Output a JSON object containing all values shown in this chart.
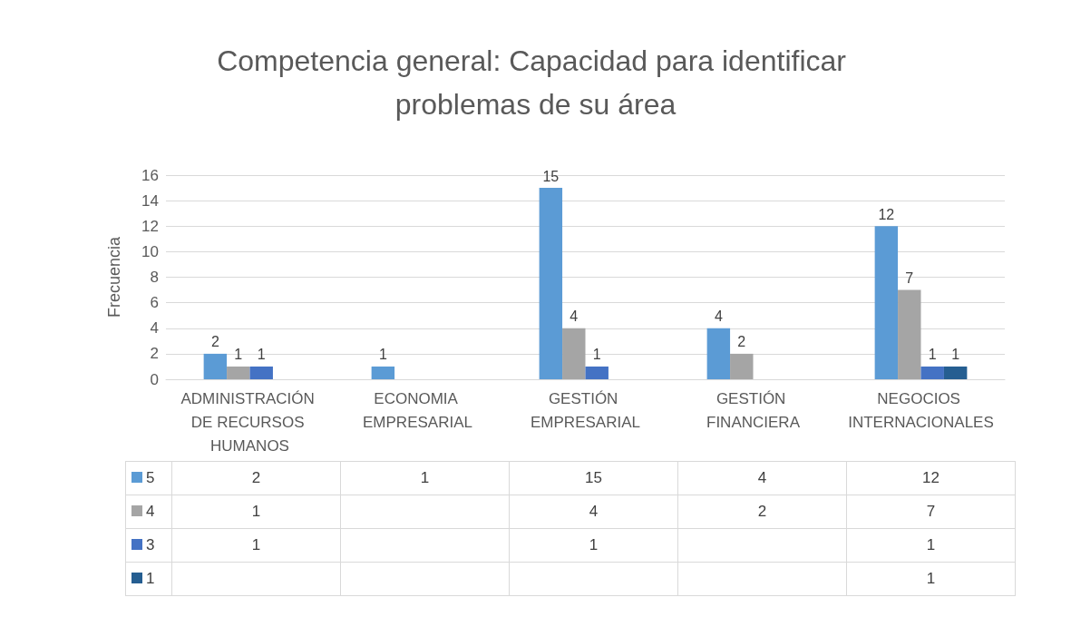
{
  "chart_data": {
    "type": "bar",
    "title": "Competencia general: Capacidad para identificar problemas de su área",
    "ylabel": "Frecuencia",
    "categories": [
      "ADMINISTRACIÓN DE RECURSOS HUMANOS",
      "ECONOMIA EMPRESARIAL",
      "GESTIÓN EMPRESARIAL",
      "GESTIÓN FINANCIERA",
      "NEGOCIOS INTERNACIONALES"
    ],
    "series": [
      {
        "name": "5",
        "color": "#5b9bd5",
        "values": [
          2,
          1,
          15,
          4,
          12
        ],
        "value_labels": [
          "2",
          "1",
          "15",
          "4",
          "12"
        ]
      },
      {
        "name": "4",
        "color": "#a5a5a5",
        "values": [
          1,
          null,
          4,
          2,
          7
        ],
        "value_labels": [
          "1",
          null,
          "4",
          "2",
          "7"
        ]
      },
      {
        "name": "3",
        "color": "#4472c4",
        "values": [
          1,
          null,
          1,
          null,
          1
        ],
        "value_labels": [
          "1",
          null,
          "1",
          null,
          "1"
        ]
      },
      {
        "name": "1",
        "color": "#255e91",
        "values": [
          null,
          null,
          null,
          null,
          1
        ],
        "value_labels": [
          null,
          null,
          null,
          null,
          "1"
        ]
      }
    ],
    "ylim": [
      0,
      16
    ],
    "yticks": [
      0,
      2,
      4,
      6,
      8,
      10,
      12,
      14,
      16
    ],
    "grid": "y",
    "legend": "bottom",
    "data_labels": true
  }
}
